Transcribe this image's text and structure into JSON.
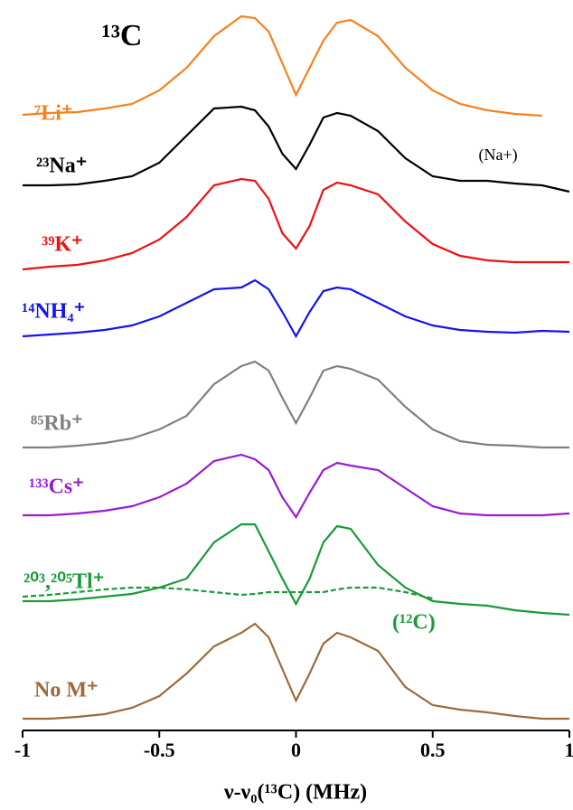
{
  "chart_data": {
    "type": "line",
    "title": "¹³C",
    "xlabel": "ν-ν₀(¹³C) (MHz)",
    "xlim": [
      -1,
      1
    ],
    "xticks": [
      -1,
      -0.5,
      0,
      0.5,
      1
    ],
    "x": [
      -1,
      -0.9,
      -0.8,
      -0.7,
      -0.6,
      -0.5,
      -0.4,
      -0.3,
      -0.2,
      -0.15,
      -0.1,
      -0.05,
      0,
      0.05,
      0.1,
      0.15,
      0.2,
      0.3,
      0.4,
      0.5,
      0.6,
      0.7,
      0.8,
      0.9,
      1
    ],
    "series": [
      {
        "name": "⁷Li⁺",
        "color": "#f7811e",
        "values": [
          673,
          675,
          676,
          680,
          685,
          700,
          725,
          760,
          782,
          780,
          765,
          730,
          695,
          725,
          755,
          775,
          778,
          760,
          725,
          700,
          685,
          678,
          674,
          672,
          null
        ]
      },
      {
        "name": "²³Na⁺",
        "color": "#000000",
        "values": [
          595,
          595,
          596,
          600,
          605,
          620,
          650,
          680,
          682,
          678,
          660,
          630,
          613,
          640,
          670,
          675,
          672,
          655,
          625,
          605,
          600,
          600,
          597,
          595,
          588
        ]
      },
      {
        "name": "³⁹K⁺",
        "color": "#ee1111",
        "values": [
          502,
          505,
          507,
          512,
          520,
          535,
          560,
          595,
          602,
          600,
          580,
          542,
          525,
          550,
          590,
          598,
          595,
          585,
          555,
          530,
          517,
          512,
          510,
          510,
          510
        ]
      },
      {
        "name": "¹⁴NH₄⁺",
        "color": "#1414ee",
        "values": [
          428,
          430,
          432,
          435,
          440,
          450,
          465,
          480,
          482,
          490,
          480,
          455,
          428,
          455,
          478,
          482,
          480,
          465,
          450,
          440,
          435,
          433,
          432,
          434,
          433
        ]
      },
      {
        "name": "⁸⁵Rb⁺",
        "color": "#808080",
        "values": [
          305,
          305,
          307,
          310,
          315,
          325,
          340,
          375,
          395,
          400,
          390,
          360,
          332,
          360,
          390,
          395,
          392,
          380,
          350,
          325,
          312,
          308,
          307,
          305,
          305
        ]
      },
      {
        "name": "¹³³Cs⁺",
        "color": "#9b1bd0",
        "values": [
          230,
          230,
          232,
          235,
          240,
          250,
          265,
          290,
          297,
          292,
          280,
          250,
          228,
          255,
          280,
          288,
          285,
          280,
          260,
          240,
          232,
          230,
          230,
          230,
          232
        ]
      },
      {
        "name": "²⁰³,²⁰⁵Tl⁺",
        "color": "#1a9a3a",
        "values": [
          135,
          135,
          137,
          140,
          143,
          150,
          160,
          200,
          220,
          220,
          190,
          160,
          132,
          160,
          200,
          218,
          215,
          175,
          150,
          135,
          132,
          130,
          125,
          122,
          120
        ]
      },
      {
        "name": "(¹²C)",
        "color": "#1a9a3a",
        "dashed": true,
        "values": [
          140,
          142,
          145,
          148,
          150,
          150,
          148,
          145,
          142,
          143,
          145,
          145,
          145,
          145,
          145,
          148,
          150,
          150,
          145,
          138,
          null,
          null,
          null,
          null,
          null
        ]
      },
      {
        "name": "No M⁺",
        "color": "#9c6b3c",
        "values": [
          5,
          5,
          7,
          10,
          17,
          30,
          55,
          85,
          100,
          110,
          95,
          60,
          25,
          55,
          88,
          100,
          95,
          80,
          40,
          20,
          15,
          12,
          8,
          5,
          5
        ]
      }
    ],
    "annotations": [
      {
        "text": "(Na+)",
        "x": 0.64
      }
    ]
  }
}
